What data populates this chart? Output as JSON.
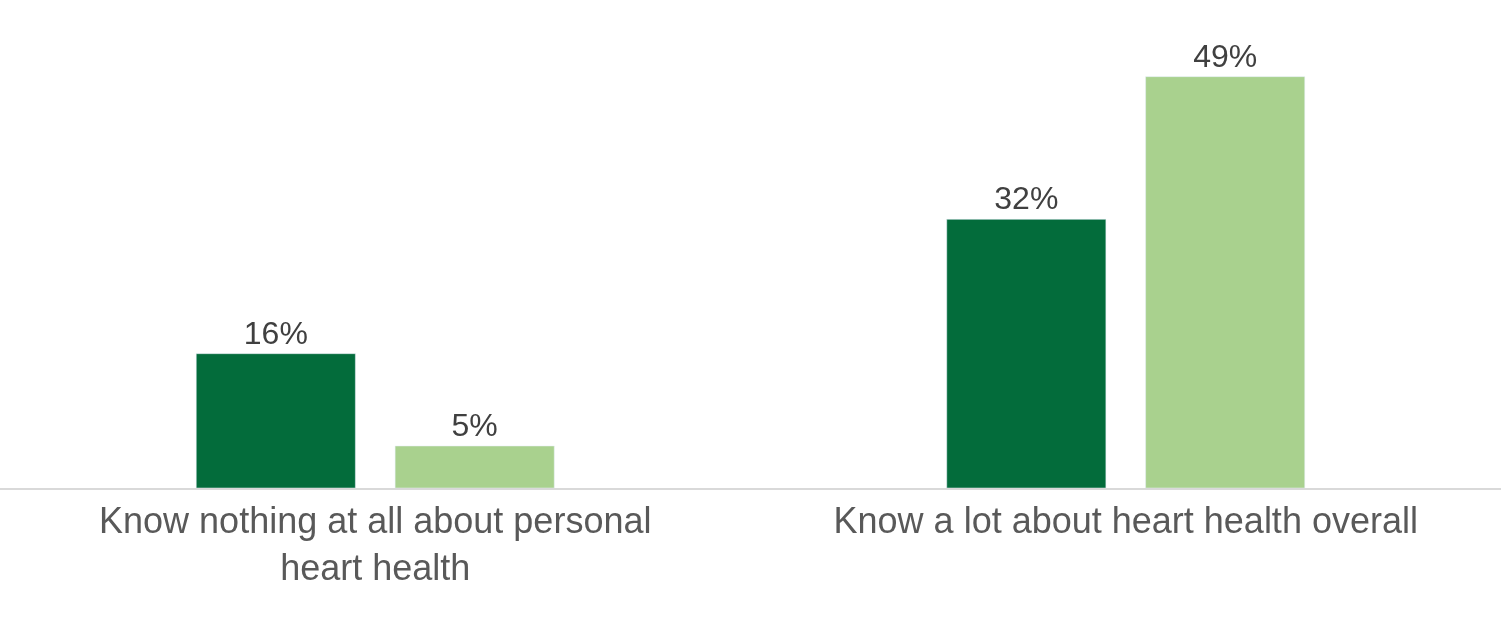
{
  "chart_data": {
    "type": "bar",
    "categories": [
      "Know nothing at all about personal heart health",
      "Know a lot about heart health overall"
    ],
    "series": [
      {
        "color": "#036c3b",
        "values": [
          16,
          32
        ],
        "value_labels": [
          "16%",
          "32%"
        ]
      },
      {
        "color": "#a9d18e",
        "values": [
          5,
          49
        ],
        "value_labels": [
          "5%",
          "49%"
        ]
      }
    ],
    "tick_labels": "x"
  }
}
